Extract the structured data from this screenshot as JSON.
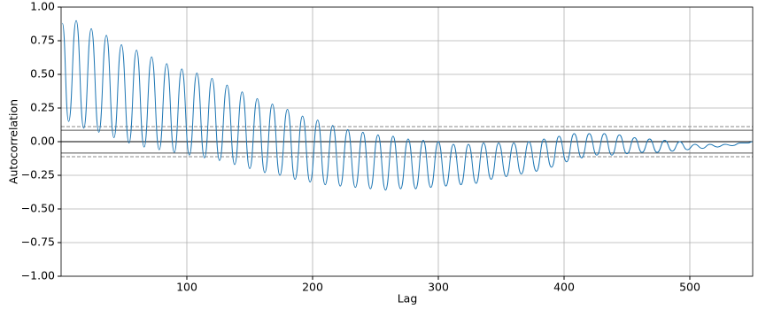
{
  "chart_data": {
    "type": "line",
    "xlabel": "Lag",
    "ylabel": "Autocorrelation",
    "xlim": [
      0,
      550
    ],
    "ylim": [
      -1,
      1
    ],
    "xticks": [
      100,
      200,
      300,
      400,
      500
    ],
    "yticks": [
      {
        "value": -1,
        "label": "−1.00"
      },
      {
        "value": -0.75,
        "label": "−0.75"
      },
      {
        "value": -0.5,
        "label": "−0.50"
      },
      {
        "value": -0.25,
        "label": "−0.25"
      },
      {
        "value": 0,
        "label": "0.00"
      },
      {
        "value": 0.25,
        "label": "0.25"
      },
      {
        "value": 0.5,
        "label": "0.50"
      },
      {
        "value": 0.75,
        "label": "0.75"
      },
      {
        "value": 1,
        "label": "1.00"
      }
    ],
    "grid": true,
    "reference_lines": [
      {
        "value": 0,
        "color": "#000000",
        "style": "solid"
      },
      {
        "value": 0.085,
        "color": "#555555",
        "style": "solid"
      },
      {
        "value": -0.085,
        "color": "#555555",
        "style": "solid"
      },
      {
        "value": 0.112,
        "color": "#888888",
        "style": "dashed"
      },
      {
        "value": -0.112,
        "color": "#888888",
        "style": "dashed"
      }
    ],
    "series": [
      {
        "color": "#1f77b4",
        "x": [
          1,
          6,
          12,
          18,
          24,
          30,
          36,
          42,
          48,
          54,
          60,
          66,
          72,
          78,
          84,
          90,
          96,
          102,
          108,
          114,
          120,
          126,
          132,
          138,
          144,
          150,
          156,
          162,
          168,
          174,
          180,
          186,
          192,
          198,
          204,
          210,
          216,
          222,
          228,
          234,
          240,
          246,
          252,
          258,
          264,
          270,
          276,
          282,
          288,
          294,
          300,
          306,
          312,
          318,
          324,
          330,
          336,
          342,
          348,
          354,
          360,
          366,
          372,
          378,
          384,
          390,
          396,
          402,
          408,
          414,
          420,
          426,
          432,
          438,
          444,
          450,
          456,
          462,
          468,
          474,
          480,
          486,
          492,
          498,
          504,
          510,
          516,
          522,
          528,
          534,
          540,
          546,
          550
        ],
        "values": [
          0.88,
          0.15,
          0.9,
          0.1,
          0.84,
          0.07,
          0.79,
          0.03,
          0.72,
          -0.01,
          0.68,
          -0.04,
          0.63,
          -0.06,
          0.58,
          -0.08,
          0.54,
          -0.1,
          0.51,
          -0.12,
          0.47,
          -0.14,
          0.42,
          -0.17,
          0.37,
          -0.2,
          0.32,
          -0.23,
          0.28,
          -0.25,
          0.24,
          -0.28,
          0.19,
          -0.3,
          0.16,
          -0.32,
          0.12,
          -0.33,
          0.09,
          -0.34,
          0.07,
          -0.35,
          0.05,
          -0.36,
          0.04,
          -0.35,
          0.02,
          -0.35,
          0.01,
          -0.34,
          0.0,
          -0.33,
          -0.02,
          -0.32,
          -0.02,
          -0.31,
          -0.01,
          -0.28,
          -0.01,
          -0.26,
          -0.01,
          -0.24,
          0.0,
          -0.22,
          0.02,
          -0.19,
          0.04,
          -0.15,
          0.06,
          -0.12,
          0.06,
          -0.1,
          0.06,
          -0.1,
          0.05,
          -0.09,
          0.03,
          -0.08,
          0.02,
          -0.08,
          0.01,
          -0.07,
          0.0,
          -0.06,
          -0.02,
          -0.05,
          -0.02,
          -0.04,
          -0.02,
          -0.03,
          -0.01,
          -0.01,
          0.0
        ]
      }
    ]
  }
}
